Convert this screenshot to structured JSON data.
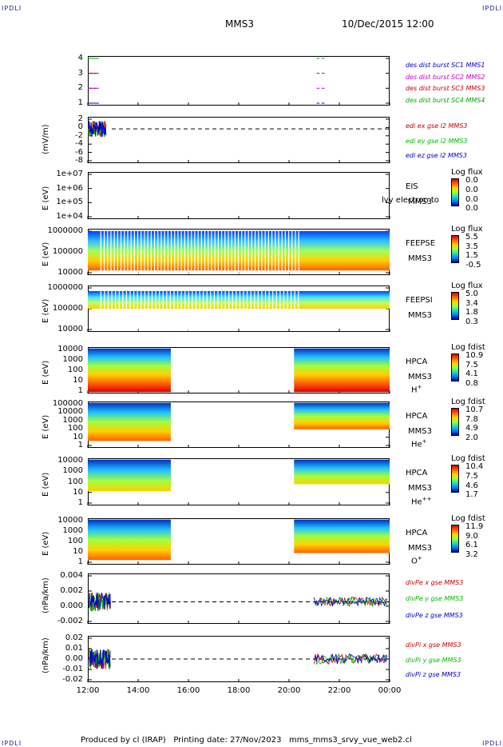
{
  "header": {
    "corner_left_top": "IPDLI",
    "corner_right_top": "IPDLI",
    "corner_left_bottom": "IPDLI",
    "corner_right_bottom": "IPDLI",
    "mission": "MMS3",
    "datetime": "10/Dec/2015 12:00"
  },
  "footer": {
    "text": "Produced by cl (IRAP)   Printing date: 27/Nov/2023   mms_mms3_srvy_vue_web2.cl"
  },
  "colors": {
    "sc1": "#0000cc",
    "sc2": "#cc00cc",
    "sc3": "#cc0000",
    "sc4": "#00aa00",
    "red": "#cc0000",
    "green": "#00bb00",
    "blue": "#0000cc"
  },
  "chart_data": [
    {
      "type": "line",
      "name": "burst",
      "yticks": [
        "4",
        "3",
        "2",
        "1"
      ],
      "ylim": [
        0.5,
        4.5
      ],
      "legend": [
        "des dist burst SC1 MMS1",
        "des dist burst SC2 MMS2",
        "des dist burst SC3 MMS3",
        "des dist burst SC4 MMS4"
      ],
      "series": [
        {
          "sc": "MMS1",
          "y": 1
        },
        {
          "sc": "MMS2",
          "y": 2
        },
        {
          "sc": "MMS3",
          "y": 3
        },
        {
          "sc": "MMS4",
          "y": 4
        }
      ]
    },
    {
      "type": "line",
      "name": "edi",
      "ylabel": "(mV/m)",
      "yticks": [
        "2",
        "0",
        "-2",
        "-4",
        "-6",
        "-8"
      ],
      "ylim": [
        -8.5,
        3
      ],
      "legend": [
        "edi ex gse l2 MMS3",
        "edi ey gse l2 MMS3",
        "edi ez gse l2 MMS3"
      ]
    },
    {
      "type": "heatmap",
      "name": "eis",
      "ylabel": "E (eV)",
      "yticks": [
        "1e+07",
        "1e+06",
        "1e+05",
        "1e+04"
      ],
      "side": [
        "EIS",
        "MMS3"
      ],
      "overlay": "lvy electron to",
      "cbar_title": "Log flux",
      "cbar_ticks": [
        "0.0",
        "0.0",
        "0.0",
        "0.0"
      ]
    },
    {
      "type": "heatmap",
      "name": "feepse",
      "ylabel": "E (eV)",
      "yticks": [
        "1000000",
        "100000",
        "10000"
      ],
      "side": [
        "FEEPSE",
        "MMS3"
      ],
      "cbar_title": "Log flux",
      "cbar_ticks": [
        "5.5",
        "3.5",
        "1.5",
        "-0.5"
      ]
    },
    {
      "type": "heatmap",
      "name": "feepsi",
      "ylabel": "E (eV)",
      "yticks": [
        "1000000",
        "100000",
        "10000"
      ],
      "side": [
        "FEEPSI",
        "MMS3"
      ],
      "cbar_title": "Log flux",
      "cbar_ticks": [
        "5.0",
        "3.4",
        "1.8",
        "0.3"
      ]
    },
    {
      "type": "heatmap",
      "name": "hpca-h",
      "ylabel": "E (eV)",
      "yticks": [
        "10000",
        "1000",
        "100",
        "10",
        "1"
      ],
      "side": [
        "HPCA",
        "MMS3"
      ],
      "species": "H",
      "charge": "+",
      "cbar_title": "Log fdist",
      "cbar_ticks": [
        "10.9",
        "7.5",
        "4.1",
        "0.8"
      ]
    },
    {
      "type": "heatmap",
      "name": "hpca-he",
      "ylabel": "E (eV)",
      "yticks": [
        "100000",
        "10000",
        "1000",
        "100",
        "10",
        "1"
      ],
      "side": [
        "HPCA",
        "MMS3"
      ],
      "species": "He",
      "charge": "+",
      "cbar_title": "Log fdist",
      "cbar_ticks": [
        "10.7",
        "7.8",
        "4.9",
        "2.0"
      ]
    },
    {
      "type": "heatmap",
      "name": "hpca-he2",
      "ylabel": "E (eV)",
      "yticks": [
        "10000",
        "1000",
        "100",
        "10",
        "1"
      ],
      "side": [
        "HPCA",
        "MMS3"
      ],
      "species": "He",
      "charge": "++",
      "cbar_title": "Log fdist",
      "cbar_ticks": [
        "10.4",
        "7.5",
        "4.6",
        "1.7"
      ]
    },
    {
      "type": "heatmap",
      "name": "hpca-o",
      "ylabel": "E (eV)",
      "yticks": [
        "10000",
        "1000",
        "100",
        "10",
        "1"
      ],
      "side": [
        "HPCA",
        "MMS3"
      ],
      "species": "O",
      "charge": "+",
      "cbar_title": "Log fdist",
      "cbar_ticks": [
        "11.9",
        "9.0",
        "6.1",
        "3.2"
      ]
    },
    {
      "type": "line",
      "name": "divpe",
      "ylabel": "(nPa/km)",
      "yticks": [
        "0.004",
        "0.002",
        "0.000",
        "-0.002"
      ],
      "ylim": [
        -0.0035,
        0.0045
      ],
      "legend": [
        "divPe x gse MMS3",
        "divPe y gse MMS3",
        "divPe z gse MMS3"
      ]
    },
    {
      "type": "line",
      "name": "divpi",
      "ylabel": "(nPa/km)",
      "yticks": [
        "0.02",
        "0.01",
        "0.00",
        "-0.01",
        "-0.02"
      ],
      "ylim": [
        -0.027,
        0.027
      ],
      "legend": [
        "divPi x gse MMS3",
        "divPi y gse MMS3",
        "divPi z gse MMS3"
      ]
    }
  ],
  "xaxis": {
    "ticks": [
      "12:00",
      "14:00",
      "16:00",
      "18:00",
      "20:00",
      "22:00",
      "00:00"
    ]
  }
}
